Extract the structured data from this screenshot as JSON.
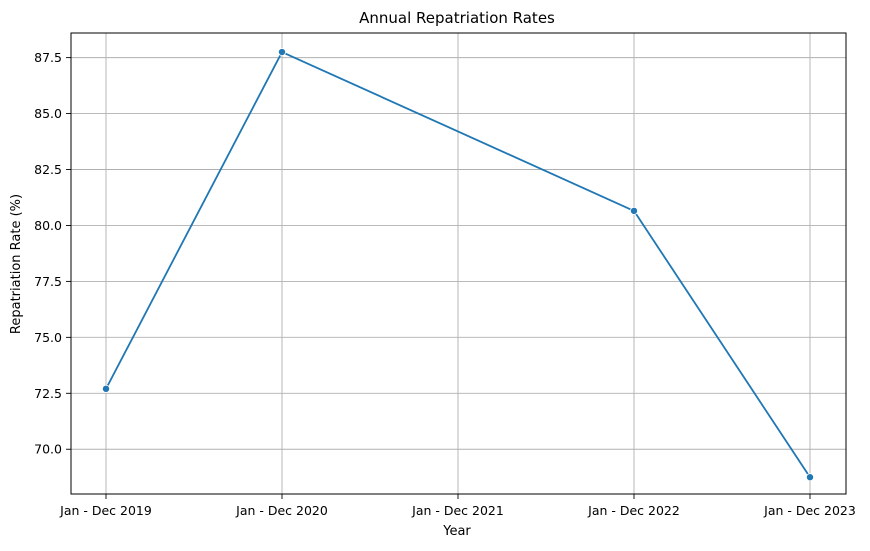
{
  "chart_data": {
    "type": "line",
    "title": "Annual Repatriation Rates",
    "xlabel": "Year",
    "ylabel": "Repatriation Rate (%)",
    "categories": [
      "Jan - Dec 2019",
      "Jan - Dec 2020",
      "Jan - Dec 2021",
      "Jan - Dec 2022",
      "Jan - Dec 2023"
    ],
    "series": [
      {
        "points": [
          {
            "x": "Jan - Dec 2019",
            "y": 72.7
          },
          {
            "x": "Jan - Dec 2020",
            "y": 87.75
          },
          {
            "x": "Jan - Dec 2022",
            "y": 80.65
          },
          {
            "x": "Jan - Dec 2023",
            "y": 68.75
          }
        ],
        "color": "#1f77b4",
        "marker": "circle"
      }
    ],
    "yticks": [
      "70.0",
      "72.5",
      "75.0",
      "77.5",
      "80.0",
      "82.5",
      "85.0",
      "87.5"
    ],
    "ylim": [
      68.0,
      88.6
    ],
    "grid": true,
    "grid_color": "#b0b0b0"
  }
}
